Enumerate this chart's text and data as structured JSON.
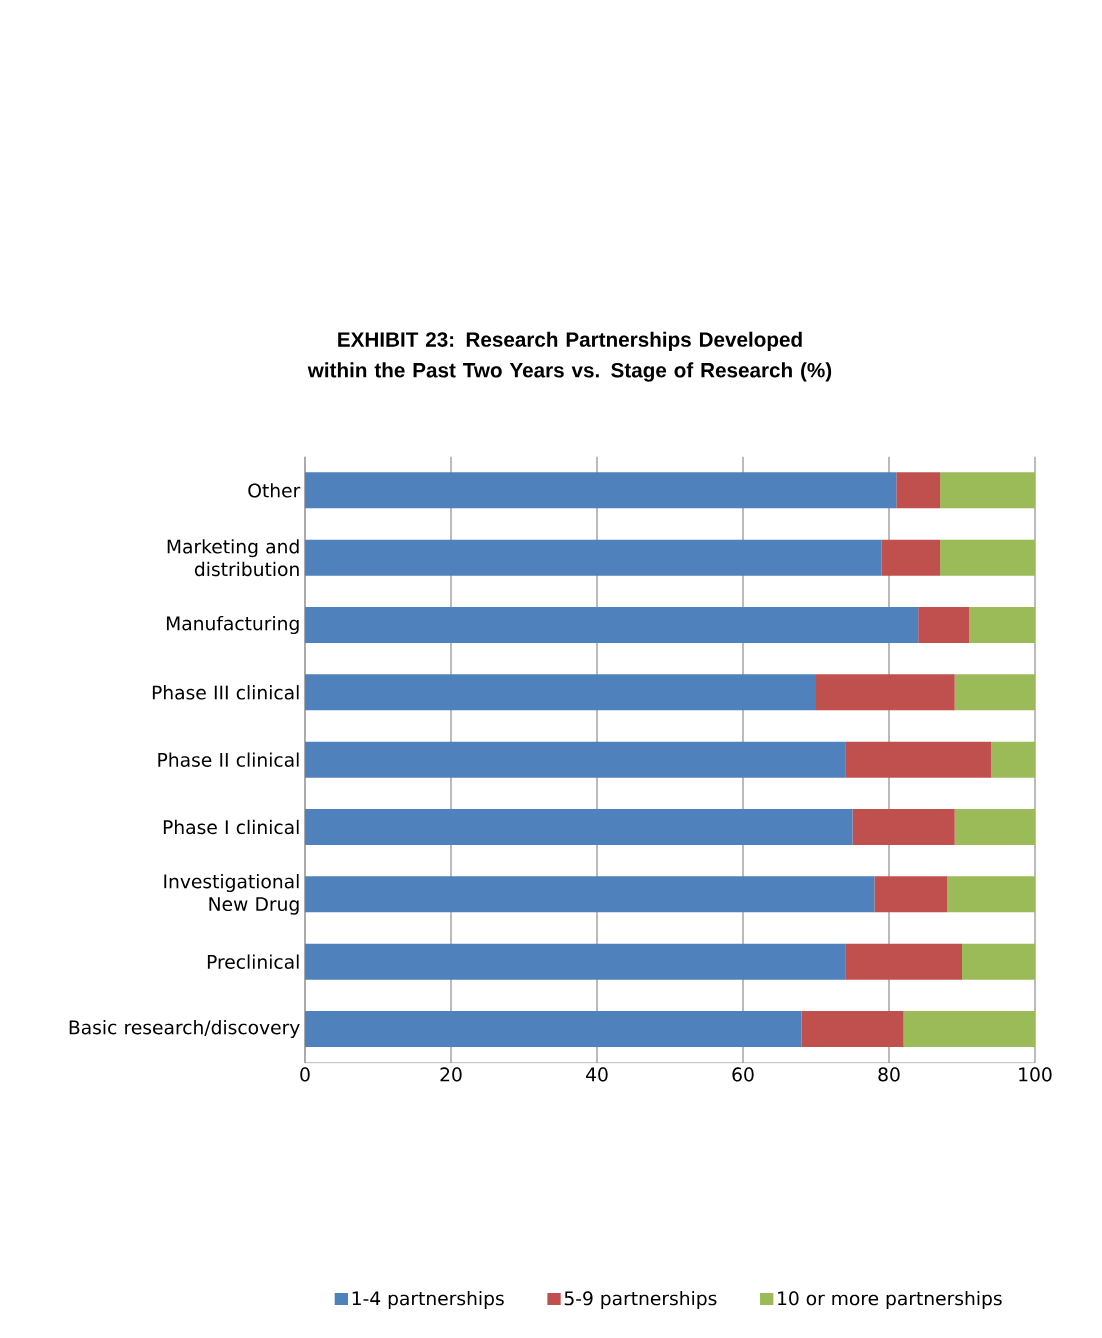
{
  "chart_data": {
    "type": "bar",
    "orientation": "horizontal",
    "stacked": true,
    "title": "EXHIBIT 23: Research Partnerships Developed within the Past Two Years vs. Stage of Research (%)",
    "categories": [
      "Other",
      "Marketing and distribution",
      "Manufacturing",
      "Phase III clinical",
      "Phase II clinical",
      "Phase I clinical",
      "Investigational New Drug",
      "Preclinical",
      "Basic research/discovery"
    ],
    "series": [
      {
        "name": "1-4 partnerships",
        "color": "#4f81bd",
        "values": [
          81,
          79,
          84,
          70,
          74,
          75,
          78,
          74,
          68
        ]
      },
      {
        "name": "5-9 partnerships",
        "color": "#c0504d",
        "values": [
          6,
          8,
          7,
          19,
          20,
          14,
          10,
          16,
          14
        ]
      },
      {
        "name": "10 or more partnerships",
        "color": "#9bbb59",
        "values": [
          13,
          13,
          9,
          11,
          6,
          11,
          12,
          10,
          18
        ]
      }
    ],
    "xlim": [
      0,
      100
    ],
    "xticks": [
      0,
      20,
      40,
      60,
      80,
      100
    ],
    "grid": "x",
    "legend": "bottom"
  }
}
